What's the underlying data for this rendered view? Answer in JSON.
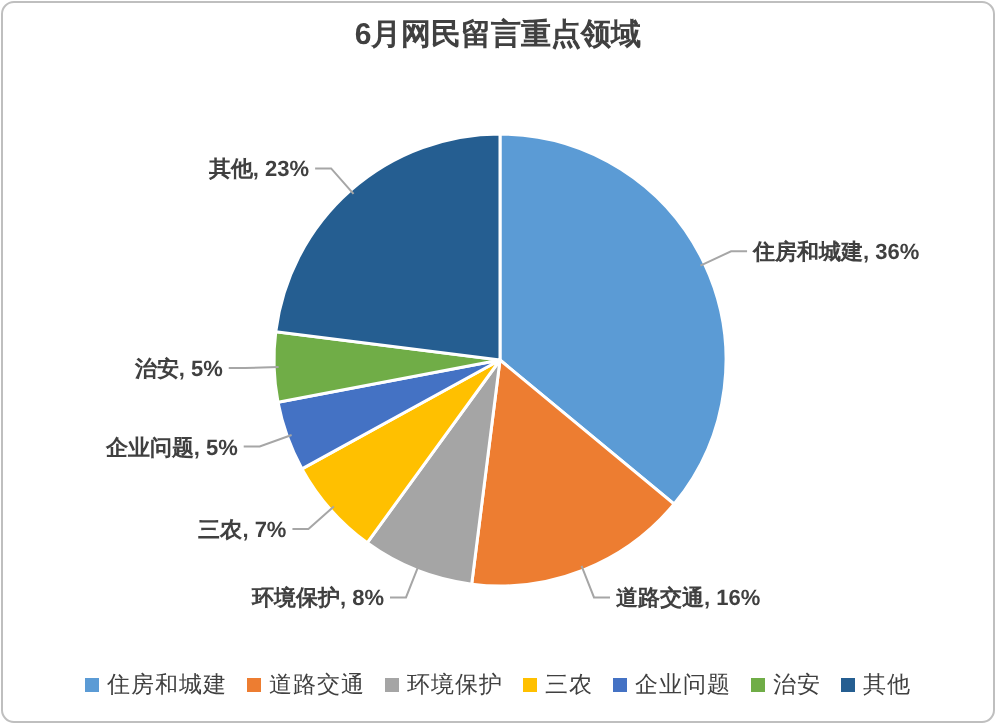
{
  "chart_data": {
    "type": "pie",
    "title": "6月网民留言重点领域",
    "categories": [
      "住房和城建",
      "道路交通",
      "环境保护",
      "三农",
      "企业问题",
      "治安",
      "其他"
    ],
    "values": [
      36,
      16,
      8,
      7,
      5,
      5,
      23
    ],
    "value_labels": [
      "住房和城建, 36%",
      "道路交通, 16%",
      "环境保护, 8%",
      "三农, 7%",
      "企业问题, 5%",
      "治安, 5%",
      "其他, 23%"
    ],
    "colors": [
      "#5b9bd5",
      "#ed7d31",
      "#a5a5a5",
      "#ffc000",
      "#4472c4",
      "#70ad47",
      "#255e91"
    ],
    "legend": "bottom"
  }
}
